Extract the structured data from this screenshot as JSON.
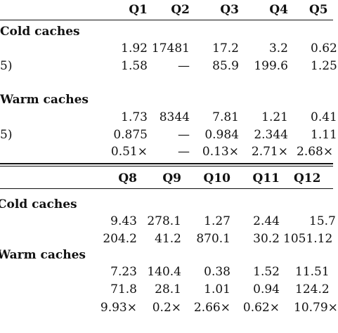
{
  "top": {
    "headers": [
      "Q1",
      "Q2",
      "Q3",
      "Q4",
      "Q5"
    ],
    "cold_label": "Cold caches",
    "cold_rows": [
      {
        "label": "",
        "values": [
          "1.92",
          "17481",
          "17.2",
          "3.2",
          "0.62"
        ]
      },
      {
        "label": "5)",
        "values": [
          "1.58",
          "—",
          "85.9",
          "199.6",
          "1.25"
        ]
      }
    ],
    "warm_label": "Warm caches",
    "warm_rows": [
      {
        "label": "",
        "values": [
          "1.73",
          "8344",
          "7.81",
          "1.21",
          "0.41"
        ]
      },
      {
        "label": "5)",
        "values": [
          "0.875",
          "—",
          "0.984",
          "2.344",
          "1.11"
        ]
      },
      {
        "label": "",
        "values": [
          "0.51×",
          "—",
          "0.13×",
          "2.71×",
          "2.68×"
        ]
      }
    ]
  },
  "bottom": {
    "headers": [
      "Q8",
      "Q9",
      "Q10",
      "Q11",
      "Q12"
    ],
    "cold_label": "Cold caches",
    "cold_rows": [
      {
        "values": [
          "9.43",
          "278.1",
          "1.27",
          "2.44",
          "15.7"
        ]
      },
      {
        "values": [
          "204.2",
          "41.2",
          "870.1",
          "30.2",
          "1051.12"
        ]
      }
    ],
    "warm_label": "Warm caches",
    "warm_rows": [
      {
        "values": [
          "7.23",
          "140.4",
          "0.38",
          "1.52",
          "11.51"
        ]
      },
      {
        "values": [
          "71.8",
          "28.1",
          "1.01",
          "0.94",
          "124.2"
        ]
      },
      {
        "values": [
          "9.93×",
          "0.2×",
          "2.66×",
          "0.62×",
          "10.79×"
        ]
      }
    ]
  }
}
